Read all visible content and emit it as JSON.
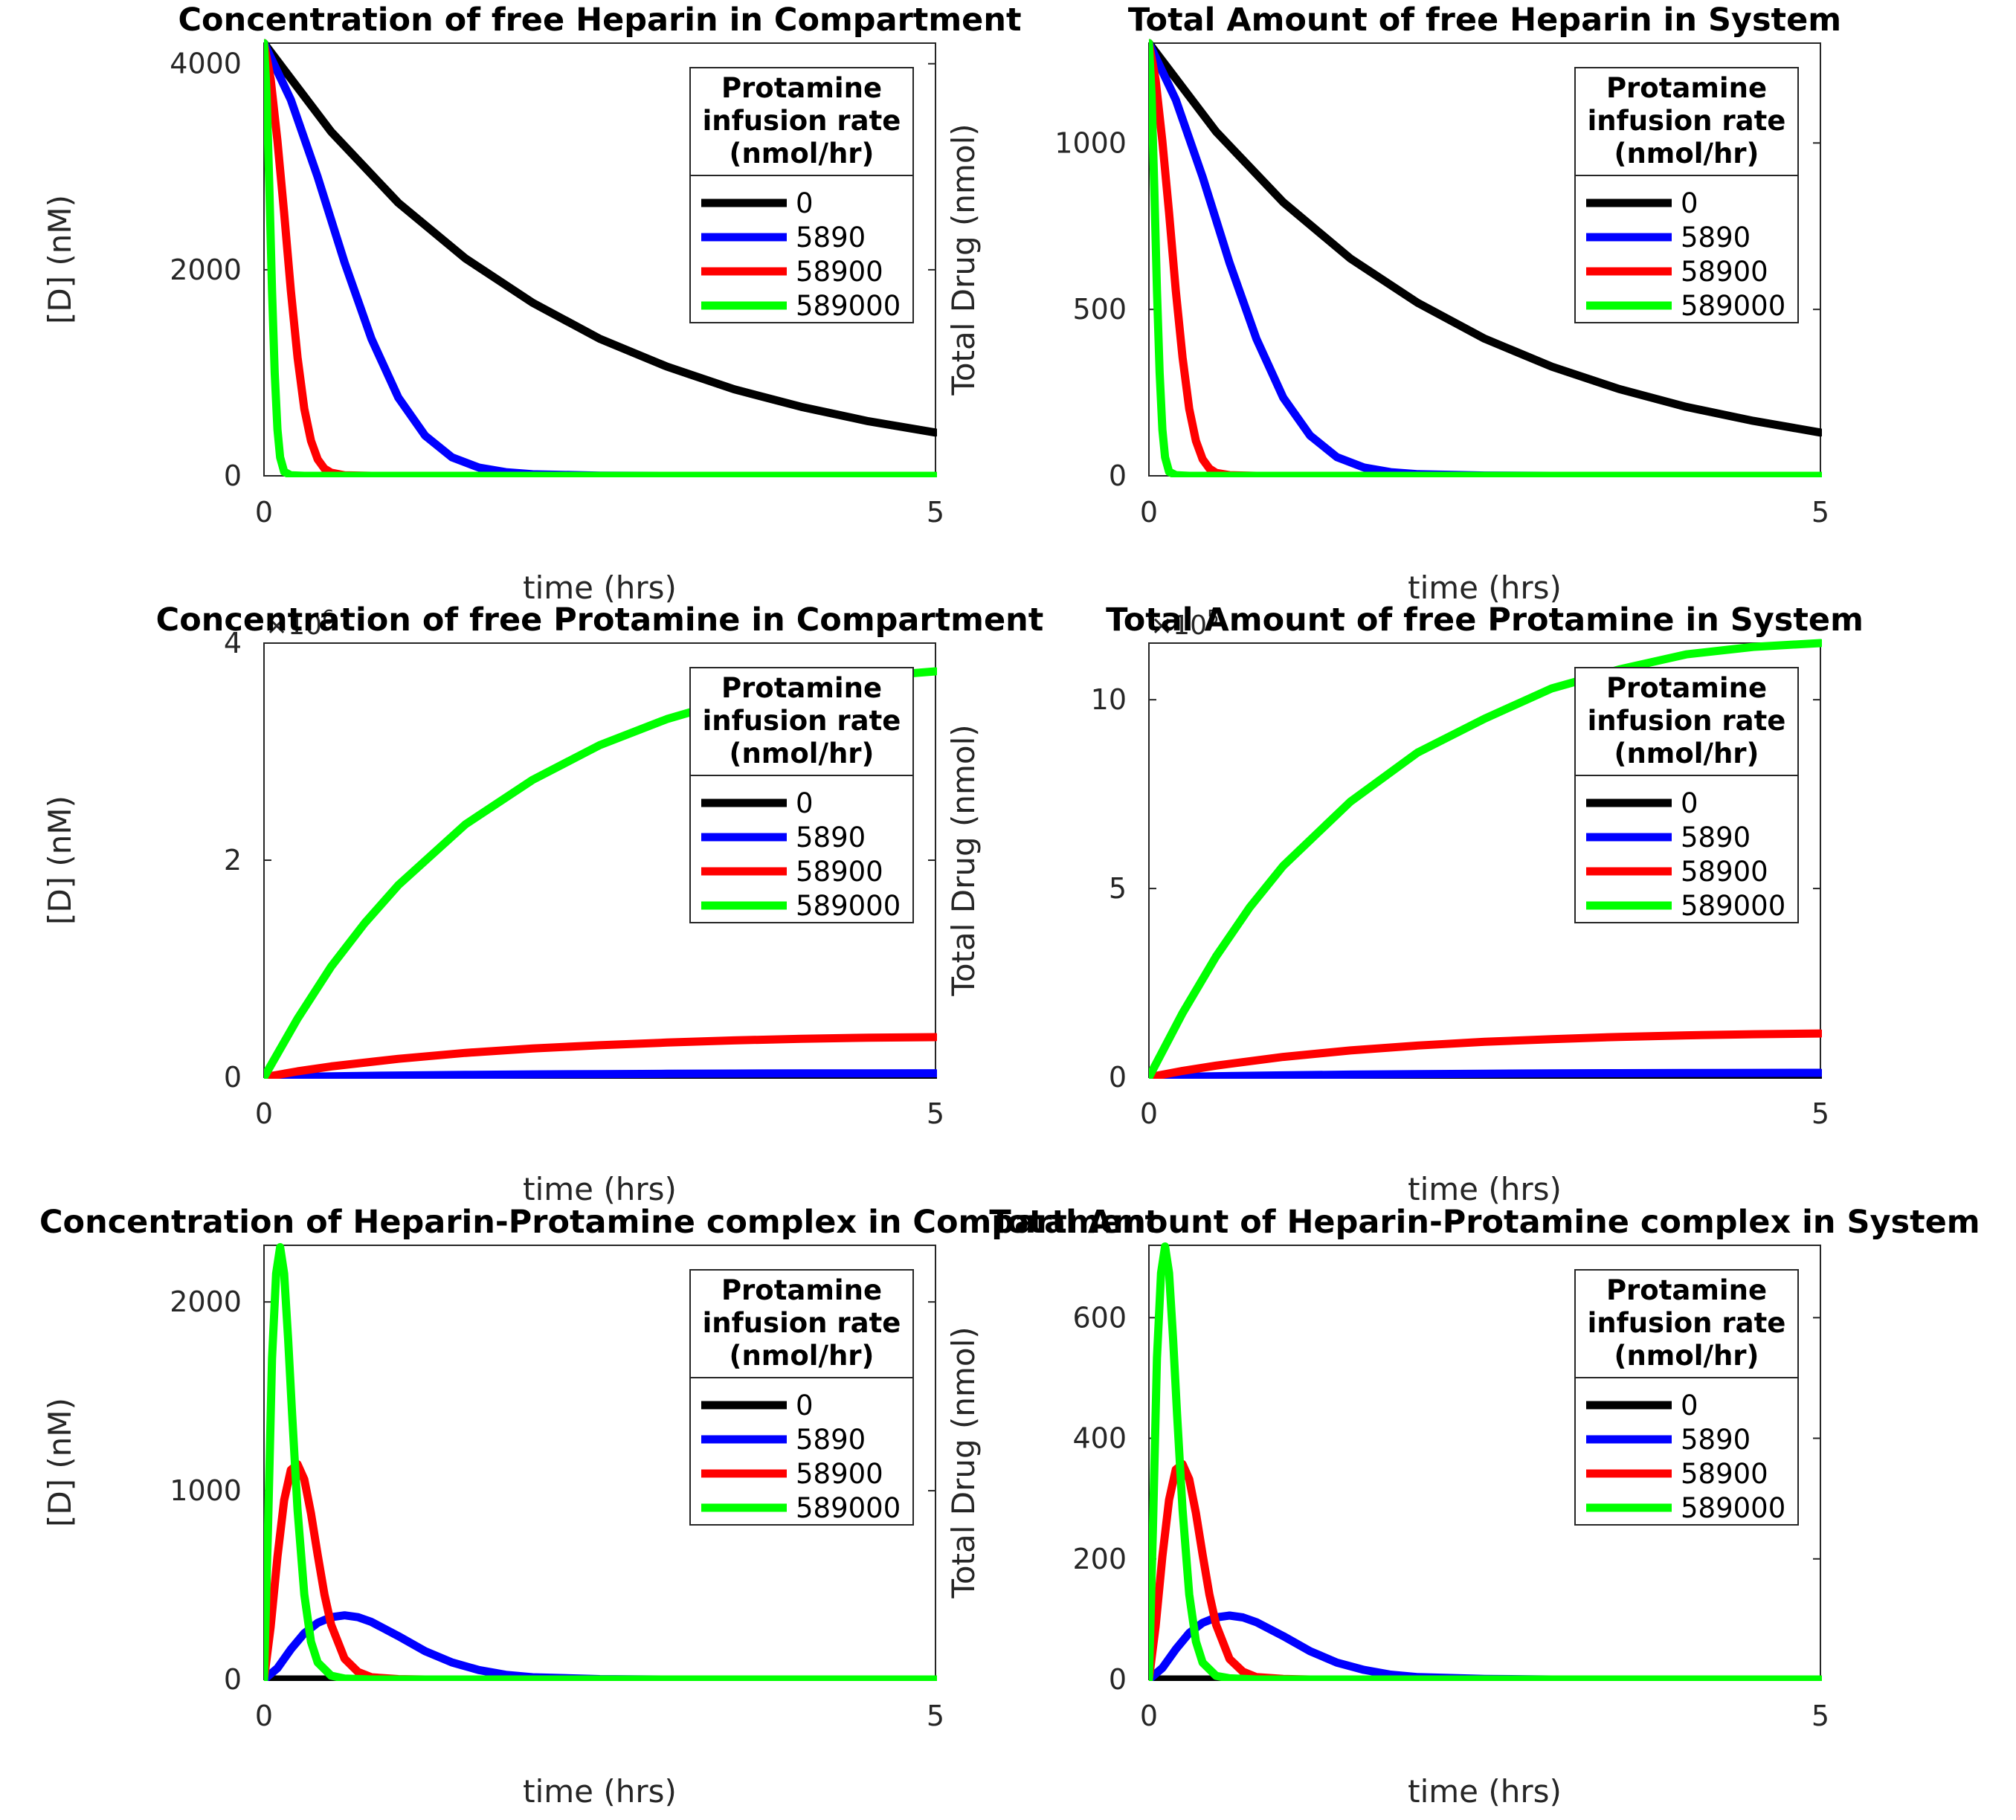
{
  "colors": {
    "0": "#000000",
    "5890": "#0000ff",
    "58900": "#ff0000",
    "589000": "#00ff00"
  },
  "chart_data": [
    {
      "type": "line",
      "title": "Concentration of free Heparin in Compartment",
      "xlabel": "time (hrs)",
      "ylabel": "[D] (nM)",
      "xlim": [
        0,
        5
      ],
      "ylim": [
        0,
        4200
      ],
      "xticks": [
        0,
        5
      ],
      "yticks": [
        0,
        2000,
        4000
      ],
      "ytick_labels": [
        "0",
        "2000",
        "4000"
      ],
      "exponent_label": "",
      "grid": false,
      "legend": {
        "title": [
          "Protamine",
          "infusion rate",
          "(nmol/hr)"
        ],
        "placement": "top-right"
      },
      "series": [
        {
          "name": "0",
          "color": "#000000",
          "x": [
            0,
            0.5,
            1,
            1.5,
            2,
            2.5,
            3,
            3.5,
            4,
            4.5,
            5
          ],
          "y": [
            4200,
            3340,
            2650,
            2110,
            1680,
            1330,
            1060,
            840,
            670,
            530,
            420
          ]
        },
        {
          "name": "5890",
          "color": "#0000ff",
          "x": [
            0,
            0.2,
            0.4,
            0.6,
            0.8,
            1.0,
            1.2,
            1.4,
            1.6,
            1.8,
            2.0,
            2.5,
            3,
            5
          ],
          "y": [
            4200,
            3650,
            2900,
            2070,
            1330,
            760,
            390,
            180,
            80,
            35,
            15,
            2,
            0,
            0
          ]
        },
        {
          "name": "58900",
          "color": "#ff0000",
          "x": [
            0,
            0.05,
            0.1,
            0.15,
            0.2,
            0.25,
            0.3,
            0.35,
            0.4,
            0.45,
            0.5,
            0.6,
            0.8,
            5
          ],
          "y": [
            4200,
            3850,
            3250,
            2550,
            1800,
            1150,
            650,
            340,
            160,
            70,
            30,
            5,
            0,
            0
          ]
        },
        {
          "name": "589000",
          "color": "#00ff00",
          "x": [
            0,
            0.02,
            0.04,
            0.06,
            0.08,
            0.1,
            0.12,
            0.15,
            0.2,
            0.3,
            5
          ],
          "y": [
            4200,
            3700,
            2800,
            1800,
            1000,
            450,
            180,
            40,
            5,
            0,
            0
          ]
        }
      ]
    },
    {
      "type": "line",
      "title": "Total Amount of free Heparin in System",
      "xlabel": "time (hrs)",
      "ylabel": "Total Drug (nmol)",
      "xlim": [
        0,
        5
      ],
      "ylim": [
        0,
        1300
      ],
      "xticks": [
        0,
        5
      ],
      "yticks": [
        0,
        500,
        1000
      ],
      "ytick_labels": [
        "0",
        "500",
        "1000"
      ],
      "exponent_label": "",
      "grid": false,
      "legend": {
        "title": [
          "Protamine",
          "infusion rate",
          "(nmol/hr)"
        ],
        "placement": "top-right"
      },
      "series": [
        {
          "name": "0",
          "color": "#000000",
          "x": [
            0,
            0.5,
            1,
            1.5,
            2,
            2.5,
            3,
            3.5,
            4,
            4.5,
            5
          ],
          "y": [
            1300,
            1034,
            822,
            653,
            520,
            412,
            328,
            261,
            207,
            165,
            130
          ]
        },
        {
          "name": "5890",
          "color": "#0000ff",
          "x": [
            0,
            0.2,
            0.4,
            0.6,
            0.8,
            1.0,
            1.2,
            1.4,
            1.6,
            1.8,
            2.0,
            2.5,
            3,
            5
          ],
          "y": [
            1300,
            1130,
            898,
            640,
            412,
            235,
            121,
            56,
            25,
            11,
            5,
            1,
            0,
            0
          ]
        },
        {
          "name": "58900",
          "color": "#ff0000",
          "x": [
            0,
            0.05,
            0.1,
            0.15,
            0.2,
            0.25,
            0.3,
            0.35,
            0.4,
            0.45,
            0.5,
            0.6,
            0.8,
            5
          ],
          "y": [
            1300,
            1190,
            1005,
            790,
            557,
            356,
            201,
            105,
            50,
            22,
            9,
            2,
            0,
            0
          ]
        },
        {
          "name": "589000",
          "color": "#00ff00",
          "x": [
            0,
            0.02,
            0.04,
            0.06,
            0.08,
            0.1,
            0.12,
            0.15,
            0.2,
            0.3,
            5
          ],
          "y": [
            1300,
            1145,
            867,
            557,
            310,
            139,
            56,
            12,
            2,
            0,
            0
          ]
        }
      ]
    },
    {
      "type": "line",
      "title": "Concentration of free Protamine in Compartment",
      "xlabel": "time (hrs)",
      "ylabel": "[D] (nM)",
      "xlim": [
        0,
        5
      ],
      "ylim": [
        0,
        4000000
      ],
      "xticks": [
        0,
        5
      ],
      "yticks": [
        0,
        2000000,
        4000000
      ],
      "ytick_labels": [
        "0",
        "2",
        "4"
      ],
      "exponent_label": "×10",
      "exponent_power": "6",
      "grid": false,
      "legend": {
        "title": [
          "Protamine",
          "infusion rate",
          "(nmol/hr)"
        ],
        "placement": "top-right"
      },
      "series": [
        {
          "name": "0",
          "color": "#000000",
          "x": [
            0,
            5
          ],
          "y": [
            0,
            0
          ]
        },
        {
          "name": "5890",
          "color": "#0000ff",
          "x": [
            0,
            0.5,
            1,
            1.5,
            2,
            2.5,
            3,
            3.5,
            4,
            4.5,
            5
          ],
          "y": [
            0,
            9000,
            16500,
            22000,
            26500,
            29500,
            32000,
            34000,
            35500,
            36500,
            37000
          ]
        },
        {
          "name": "58900",
          "color": "#ff0000",
          "x": [
            0,
            0.25,
            0.5,
            1,
            1.5,
            2,
            2.5,
            3,
            3.5,
            4,
            4.5,
            5
          ],
          "y": [
            0,
            55000,
            100000,
            170000,
            225000,
            265000,
            295000,
            320000,
            340000,
            355000,
            365000,
            370000
          ]
        },
        {
          "name": "589000",
          "color": "#00ff00",
          "x": [
            0,
            0.25,
            0.5,
            0.75,
            1,
            1.5,
            2,
            2.5,
            3,
            3.5,
            4,
            4.5,
            5
          ],
          "y": [
            0,
            540000,
            1020000,
            1420000,
            1770000,
            2330000,
            2740000,
            3060000,
            3300000,
            3480000,
            3610000,
            3690000,
            3740000
          ]
        }
      ]
    },
    {
      "type": "line",
      "title": "Total Amount of free Protamine in System",
      "xlabel": "time (hrs)",
      "ylabel": "Total Drug (nmol)",
      "xlim": [
        0,
        5
      ],
      "ylim": [
        0,
        1150000
      ],
      "xticks": [
        0,
        5
      ],
      "yticks": [
        0,
        500000,
        1000000
      ],
      "ytick_labels": [
        "0",
        "5",
        "10"
      ],
      "exponent_label": "×10",
      "exponent_power": "5",
      "grid": false,
      "legend": {
        "title": [
          "Protamine",
          "infusion rate",
          "(nmol/hr)"
        ],
        "placement": "top-right"
      },
      "series": [
        {
          "name": "0",
          "color": "#000000",
          "x": [
            0,
            5
          ],
          "y": [
            0,
            0
          ]
        },
        {
          "name": "5890",
          "color": "#0000ff",
          "x": [
            0,
            0.5,
            1,
            1.5,
            2,
            2.5,
            3,
            3.5,
            4,
            4.5,
            5
          ],
          "y": [
            0,
            2800,
            5200,
            7000,
            8400,
            9400,
            10200,
            10800,
            11300,
            11600,
            11800
          ]
        },
        {
          "name": "58900",
          "color": "#ff0000",
          "x": [
            0,
            0.25,
            0.5,
            1,
            1.5,
            2,
            2.5,
            3,
            3.5,
            4,
            4.5,
            5
          ],
          "y": [
            0,
            17000,
            31000,
            54000,
            71000,
            84000,
            94000,
            101000,
            107000,
            111000,
            114000,
            116000
          ]
        },
        {
          "name": "589000",
          "color": "#00ff00",
          "x": [
            0,
            0.25,
            0.5,
            0.75,
            1,
            1.5,
            2,
            2.5,
            3,
            3.5,
            4,
            4.5,
            5
          ],
          "y": [
            0,
            170000,
            320000,
            450000,
            560000,
            730000,
            860000,
            950000,
            1030000,
            1080000,
            1120000,
            1140000,
            1150000
          ]
        }
      ]
    },
    {
      "type": "line",
      "title": "Concentration of Heparin-Protamine complex in Compartment",
      "xlabel": "time (hrs)",
      "ylabel": "[D] (nM)",
      "xlim": [
        0,
        5
      ],
      "ylim": [
        0,
        2300
      ],
      "xticks": [
        0,
        5
      ],
      "yticks": [
        0,
        1000,
        2000
      ],
      "ytick_labels": [
        "0",
        "1000",
        "2000"
      ],
      "exponent_label": "",
      "grid": false,
      "legend": {
        "title": [
          "Protamine",
          "infusion rate",
          "(nmol/hr)"
        ],
        "placement": "top-right"
      },
      "series": [
        {
          "name": "0",
          "color": "#000000",
          "x": [
            0,
            5
          ],
          "y": [
            0,
            0
          ]
        },
        {
          "name": "5890",
          "color": "#0000ff",
          "x": [
            0,
            0.1,
            0.2,
            0.3,
            0.4,
            0.5,
            0.6,
            0.7,
            0.8,
            1.0,
            1.2,
            1.4,
            1.6,
            1.8,
            2.0,
            2.5,
            3,
            5
          ],
          "y": [
            0,
            60,
            160,
            245,
            300,
            330,
            340,
            330,
            305,
            230,
            150,
            90,
            50,
            25,
            12,
            2,
            0,
            0
          ]
        },
        {
          "name": "58900",
          "color": "#ff0000",
          "x": [
            0,
            0.05,
            0.1,
            0.15,
            0.2,
            0.25,
            0.3,
            0.35,
            0.4,
            0.45,
            0.5,
            0.6,
            0.7,
            0.8,
            1.0,
            1.2,
            5
          ],
          "y": [
            0,
            280,
            650,
            950,
            1110,
            1140,
            1060,
            880,
            660,
            450,
            290,
            110,
            40,
            12,
            2,
            0,
            0
          ]
        },
        {
          "name": "589000",
          "color": "#00ff00",
          "x": [
            0,
            0.03,
            0.06,
            0.09,
            0.12,
            0.15,
            0.18,
            0.21,
            0.25,
            0.3,
            0.35,
            0.4,
            0.5,
            0.6,
            0.8,
            5
          ],
          "y": [
            0,
            800,
            1700,
            2150,
            2290,
            2150,
            1800,
            1400,
            900,
            450,
            200,
            90,
            20,
            5,
            0,
            0
          ]
        }
      ]
    },
    {
      "type": "line",
      "title": "Total Amount of Heparin-Protamine complex in System",
      "xlabel": "time (hrs)",
      "ylabel": "Total Drug (nmol)",
      "xlim": [
        0,
        5
      ],
      "ylim": [
        0,
        720
      ],
      "xticks": [
        0,
        5
      ],
      "yticks": [
        0,
        200,
        400,
        600
      ],
      "ytick_labels": [
        "0",
        "200",
        "400",
        "600"
      ],
      "exponent_label": "",
      "grid": false,
      "legend": {
        "title": [
          "Protamine",
          "infusion rate",
          "(nmol/hr)"
        ],
        "placement": "top-right"
      },
      "series": [
        {
          "name": "0",
          "color": "#000000",
          "x": [
            0,
            5
          ],
          "y": [
            0,
            0
          ]
        },
        {
          "name": "5890",
          "color": "#0000ff",
          "x": [
            0,
            0.1,
            0.2,
            0.3,
            0.4,
            0.5,
            0.6,
            0.7,
            0.8,
            1.0,
            1.2,
            1.4,
            1.6,
            1.8,
            2.0,
            2.5,
            3,
            5
          ],
          "y": [
            0,
            19,
            50,
            77,
            94,
            103,
            106,
            103,
            95,
            72,
            47,
            28,
            16,
            8,
            4,
            1,
            0,
            0
          ]
        },
        {
          "name": "58900",
          "color": "#ff0000",
          "x": [
            0,
            0.05,
            0.1,
            0.15,
            0.2,
            0.25,
            0.3,
            0.35,
            0.4,
            0.45,
            0.5,
            0.6,
            0.7,
            0.8,
            1.0,
            1.2,
            5
          ],
          "y": [
            0,
            88,
            204,
            298,
            348,
            357,
            332,
            276,
            207,
            141,
            91,
            34,
            13,
            4,
            1,
            0,
            0
          ]
        },
        {
          "name": "589000",
          "color": "#00ff00",
          "x": [
            0,
            0.03,
            0.06,
            0.09,
            0.12,
            0.15,
            0.18,
            0.21,
            0.25,
            0.3,
            0.35,
            0.4,
            0.5,
            0.6,
            0.8,
            5
          ],
          "y": [
            0,
            250,
            533,
            674,
            718,
            674,
            565,
            439,
            282,
            141,
            63,
            28,
            6,
            2,
            0,
            0
          ]
        }
      ]
    }
  ]
}
